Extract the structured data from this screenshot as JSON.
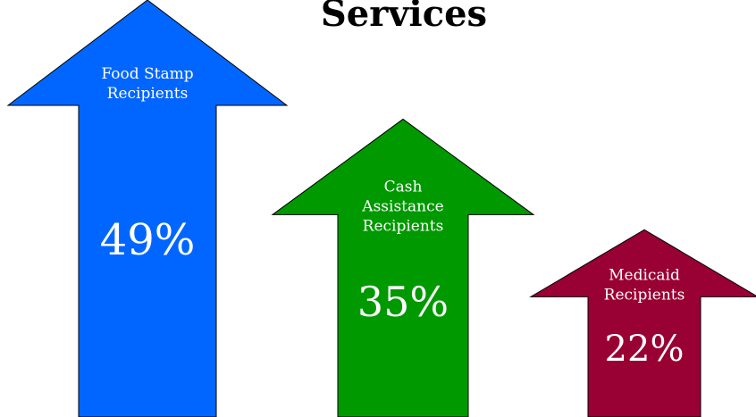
{
  "chart_data": {
    "type": "bar",
    "title": "Services",
    "categories": [
      "Food Stamp Recipients",
      "Cash Assistance Recipients",
      "Medicaid Recipients"
    ],
    "values": [
      49,
      35,
      22
    ],
    "value_labels": [
      "49%",
      "35%",
      "22%"
    ],
    "label_lines": [
      [
        "Food Stamp",
        "Recipients"
      ],
      [
        "Cash",
        "Assistance",
        "Recipients"
      ],
      [
        "Medicaid",
        "Recipients"
      ]
    ],
    "colors": [
      "#0066ff",
      "#009900",
      "#990033"
    ]
  }
}
